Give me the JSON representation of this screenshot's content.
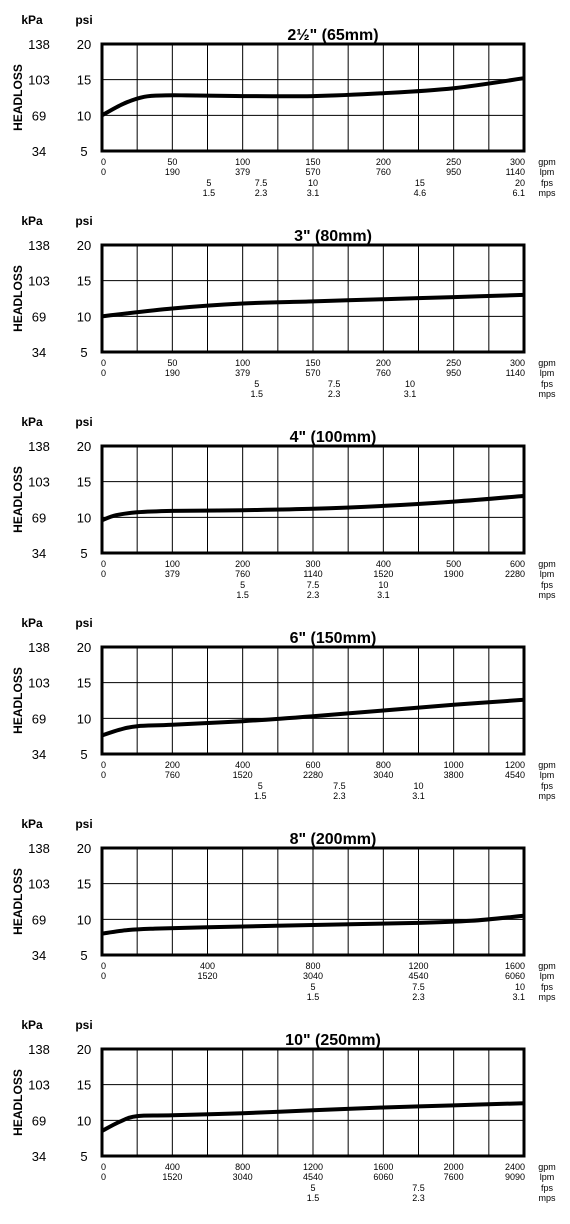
{
  "units": {
    "kpa": "kPa",
    "psi": "psi",
    "headloss": "HEADLOSS",
    "rows": [
      "gpm",
      "lpm",
      "fps",
      "mps"
    ]
  },
  "colors": {
    "line": "#000000",
    "grid": "#000000",
    "background": "#ffffff"
  },
  "chart_data": [
    {
      "type": "line",
      "title": "2½\" (65mm)",
      "ylabel": "HEADLOSS",
      "ylim": [
        5,
        20
      ],
      "xlim": [
        0,
        300
      ],
      "grid": true,
      "y_psi_ticks": [
        "20",
        "15",
        "10",
        "5"
      ],
      "y_kpa_ticks": [
        "138",
        "103",
        "69",
        "34"
      ],
      "tick_rows": [
        {
          "unit": "gpm",
          "ticks": [
            {
              "x": 0,
              "label": "0"
            },
            {
              "x": 50,
              "label": "50"
            },
            {
              "x": 100,
              "label": "100"
            },
            {
              "x": 150,
              "label": "150"
            },
            {
              "x": 200,
              "label": "200"
            },
            {
              "x": 250,
              "label": "250"
            },
            {
              "x": 300,
              "label": "300"
            }
          ]
        },
        {
          "unit": "lpm",
          "ticks": [
            {
              "x": 0,
              "label": "0"
            },
            {
              "x": 50,
              "label": "190"
            },
            {
              "x": 100,
              "label": "379"
            },
            {
              "x": 150,
              "label": "570"
            },
            {
              "x": 200,
              "label": "760"
            },
            {
              "x": 250,
              "label": "950"
            },
            {
              "x": 300,
              "label": "1140"
            }
          ]
        },
        {
          "unit": "fps",
          "ticks": [
            {
              "x": 76,
              "label": "5"
            },
            {
              "x": 113,
              "label": "7.5"
            },
            {
              "x": 150,
              "label": "10"
            },
            {
              "x": 226,
              "label": "15"
            },
            {
              "x": 300,
              "label": "20"
            }
          ]
        },
        {
          "unit": "mps",
          "ticks": [
            {
              "x": 76,
              "label": "1.5"
            },
            {
              "x": 113,
              "label": "2.3"
            },
            {
              "x": 150,
              "label": "3.1"
            },
            {
              "x": 226,
              "label": "4.6"
            },
            {
              "x": 300,
              "label": "6.1"
            }
          ]
        }
      ],
      "series": [
        {
          "x": [
            0,
            15,
            30,
            45,
            60,
            100,
            150,
            200,
            250,
            300
          ],
          "y": [
            10,
            11.6,
            12.6,
            12.8,
            12.8,
            12.7,
            12.7,
            13.1,
            13.8,
            15.2
          ]
        }
      ]
    },
    {
      "type": "line",
      "title": "3\" (80mm)",
      "ylabel": "HEADLOSS",
      "ylim": [
        5,
        20
      ],
      "xlim": [
        0,
        300
      ],
      "grid": true,
      "y_psi_ticks": [
        "20",
        "15",
        "10",
        "5"
      ],
      "y_kpa_ticks": [
        "138",
        "103",
        "69",
        "34"
      ],
      "tick_rows": [
        {
          "unit": "gpm",
          "ticks": [
            {
              "x": 0,
              "label": "0"
            },
            {
              "x": 50,
              "label": "50"
            },
            {
              "x": 100,
              "label": "100"
            },
            {
              "x": 150,
              "label": "150"
            },
            {
              "x": 200,
              "label": "200"
            },
            {
              "x": 250,
              "label": "250"
            },
            {
              "x": 300,
              "label": "300"
            }
          ]
        },
        {
          "unit": "lpm",
          "ticks": [
            {
              "x": 0,
              "label": "0"
            },
            {
              "x": 50,
              "label": "190"
            },
            {
              "x": 100,
              "label": "379"
            },
            {
              "x": 150,
              "label": "570"
            },
            {
              "x": 200,
              "label": "760"
            },
            {
              "x": 250,
              "label": "950"
            },
            {
              "x": 300,
              "label": "1140"
            }
          ]
        },
        {
          "unit": "fps",
          "ticks": [
            {
              "x": 110,
              "label": "5"
            },
            {
              "x": 165,
              "label": "7.5"
            },
            {
              "x": 219,
              "label": "10"
            }
          ]
        },
        {
          "unit": "mps",
          "ticks": [
            {
              "x": 110,
              "label": "1.5"
            },
            {
              "x": 165,
              "label": "2.3"
            },
            {
              "x": 219,
              "label": "3.1"
            }
          ]
        }
      ],
      "series": [
        {
          "x": [
            0,
            50,
            100,
            150,
            200,
            250,
            300
          ],
          "y": [
            10,
            11.1,
            11.8,
            12.1,
            12.4,
            12.7,
            13.0
          ]
        }
      ]
    },
    {
      "type": "line",
      "title": "4\" (100mm)",
      "ylabel": "HEADLOSS",
      "ylim": [
        5,
        20
      ],
      "xlim": [
        0,
        600
      ],
      "grid": true,
      "y_psi_ticks": [
        "20",
        "15",
        "10",
        "5"
      ],
      "y_kpa_ticks": [
        "138",
        "103",
        "69",
        "34"
      ],
      "tick_rows": [
        {
          "unit": "gpm",
          "ticks": [
            {
              "x": 0,
              "label": "0"
            },
            {
              "x": 100,
              "label": "100"
            },
            {
              "x": 200,
              "label": "200"
            },
            {
              "x": 300,
              "label": "300"
            },
            {
              "x": 400,
              "label": "400"
            },
            {
              "x": 500,
              "label": "500"
            },
            {
              "x": 600,
              "label": "600"
            }
          ]
        },
        {
          "unit": "lpm",
          "ticks": [
            {
              "x": 0,
              "label": "0"
            },
            {
              "x": 100,
              "label": "379"
            },
            {
              "x": 200,
              "label": "760"
            },
            {
              "x": 300,
              "label": "1140"
            },
            {
              "x": 400,
              "label": "1520"
            },
            {
              "x": 500,
              "label": "1900"
            },
            {
              "x": 600,
              "label": "2280"
            }
          ]
        },
        {
          "unit": "fps",
          "ticks": [
            {
              "x": 200,
              "label": "5"
            },
            {
              "x": 300,
              "label": "7.5"
            },
            {
              "x": 400,
              "label": "10"
            }
          ]
        },
        {
          "unit": "mps",
          "ticks": [
            {
              "x": 200,
              "label": "1.5"
            },
            {
              "x": 300,
              "label": "2.3"
            },
            {
              "x": 400,
              "label": "3.1"
            }
          ]
        }
      ],
      "series": [
        {
          "x": [
            0,
            20,
            50,
            100,
            200,
            300,
            400,
            500,
            600
          ],
          "y": [
            9.6,
            10.3,
            10.7,
            10.9,
            11.0,
            11.2,
            11.6,
            12.2,
            13.0
          ]
        }
      ]
    },
    {
      "type": "line",
      "title": "6\" (150mm)",
      "ylabel": "HEADLOSS",
      "ylim": [
        5,
        20
      ],
      "xlim": [
        0,
        1200
      ],
      "grid": true,
      "y_psi_ticks": [
        "20",
        "15",
        "10",
        "5"
      ],
      "y_kpa_ticks": [
        "138",
        "103",
        "69",
        "34"
      ],
      "tick_rows": [
        {
          "unit": "gpm",
          "ticks": [
            {
              "x": 0,
              "label": "0"
            },
            {
              "x": 200,
              "label": "200"
            },
            {
              "x": 400,
              "label": "400"
            },
            {
              "x": 600,
              "label": "600"
            },
            {
              "x": 800,
              "label": "800"
            },
            {
              "x": 1000,
              "label": "1000"
            },
            {
              "x": 1200,
              "label": "1200"
            }
          ]
        },
        {
          "unit": "lpm",
          "ticks": [
            {
              "x": 0,
              "label": "0"
            },
            {
              "x": 200,
              "label": "760"
            },
            {
              "x": 400,
              "label": "1520"
            },
            {
              "x": 600,
              "label": "2280"
            },
            {
              "x": 800,
              "label": "3040"
            },
            {
              "x": 1000,
              "label": "3800"
            },
            {
              "x": 1200,
              "label": "4540"
            }
          ]
        },
        {
          "unit": "fps",
          "ticks": [
            {
              "x": 450,
              "label": "5"
            },
            {
              "x": 675,
              "label": "7.5"
            },
            {
              "x": 900,
              "label": "10"
            }
          ]
        },
        {
          "unit": "mps",
          "ticks": [
            {
              "x": 450,
              "label": "1.5"
            },
            {
              "x": 675,
              "label": "2.3"
            },
            {
              "x": 900,
              "label": "3.1"
            }
          ]
        }
      ],
      "series": [
        {
          "x": [
            0,
            50,
            100,
            200,
            400,
            600,
            800,
            1000,
            1200
          ],
          "y": [
            7.6,
            8.4,
            8.9,
            9.1,
            9.6,
            10.3,
            11.1,
            11.9,
            12.6
          ]
        }
      ]
    },
    {
      "type": "line",
      "title": "8\" (200mm)",
      "ylabel": "HEADLOSS",
      "ylim": [
        5,
        20
      ],
      "xlim": [
        0,
        1600
      ],
      "grid": true,
      "y_psi_ticks": [
        "20",
        "15",
        "10",
        "5"
      ],
      "y_kpa_ticks": [
        "138",
        "103",
        "69",
        "34"
      ],
      "tick_rows": [
        {
          "unit": "gpm",
          "ticks": [
            {
              "x": 0,
              "label": "0"
            },
            {
              "x": 400,
              "label": "400"
            },
            {
              "x": 800,
              "label": "800"
            },
            {
              "x": 1200,
              "label": "1200"
            },
            {
              "x": 1600,
              "label": "1600"
            }
          ]
        },
        {
          "unit": "lpm",
          "ticks": [
            {
              "x": 0,
              "label": "0"
            },
            {
              "x": 400,
              "label": "1520"
            },
            {
              "x": 800,
              "label": "3040"
            },
            {
              "x": 1200,
              "label": "4540"
            },
            {
              "x": 1600,
              "label": "6060"
            }
          ]
        },
        {
          "unit": "fps",
          "ticks": [
            {
              "x": 800,
              "label": "5"
            },
            {
              "x": 1200,
              "label": "7.5"
            },
            {
              "x": 1600,
              "label": "10"
            }
          ]
        },
        {
          "unit": "mps",
          "ticks": [
            {
              "x": 800,
              "label": "1.5"
            },
            {
              "x": 1200,
              "label": "2.3"
            },
            {
              "x": 1600,
              "label": "3.1"
            }
          ]
        }
      ],
      "series": [
        {
          "x": [
            0,
            100,
            200,
            400,
            800,
            1200,
            1400,
            1600
          ],
          "y": [
            8.0,
            8.5,
            8.7,
            8.9,
            9.2,
            9.5,
            9.8,
            10.5
          ]
        }
      ]
    },
    {
      "type": "line",
      "title": "10\" (250mm)",
      "ylabel": "HEADLOSS",
      "ylim": [
        5,
        20
      ],
      "xlim": [
        0,
        2400
      ],
      "grid": true,
      "y_psi_ticks": [
        "20",
        "15",
        "10",
        "5"
      ],
      "y_kpa_ticks": [
        "138",
        "103",
        "69",
        "34"
      ],
      "tick_rows": [
        {
          "unit": "gpm",
          "ticks": [
            {
              "x": 0,
              "label": "0"
            },
            {
              "x": 400,
              "label": "400"
            },
            {
              "x": 800,
              "label": "800"
            },
            {
              "x": 1200,
              "label": "1200"
            },
            {
              "x": 1600,
              "label": "1600"
            },
            {
              "x": 2000,
              "label": "2000"
            },
            {
              "x": 2400,
              "label": "2400"
            }
          ]
        },
        {
          "unit": "lpm",
          "ticks": [
            {
              "x": 0,
              "label": "0"
            },
            {
              "x": 400,
              "label": "1520"
            },
            {
              "x": 800,
              "label": "3040"
            },
            {
              "x": 1200,
              "label": "4540"
            },
            {
              "x": 1600,
              "label": "6060"
            },
            {
              "x": 2000,
              "label": "7600"
            },
            {
              "x": 2400,
              "label": "9090"
            }
          ]
        },
        {
          "unit": "fps",
          "ticks": [
            {
              "x": 1200,
              "label": "5"
            },
            {
              "x": 1800,
              "label": "7.5"
            }
          ]
        },
        {
          "unit": "mps",
          "ticks": [
            {
              "x": 1200,
              "label": "1.5"
            },
            {
              "x": 1800,
              "label": "2.3"
            }
          ]
        }
      ],
      "series": [
        {
          "x": [
            0,
            100,
            200,
            400,
            800,
            1200,
            1600,
            2000,
            2400
          ],
          "y": [
            8.5,
            9.8,
            10.6,
            10.7,
            11.0,
            11.4,
            11.8,
            12.1,
            12.4
          ]
        }
      ]
    }
  ]
}
